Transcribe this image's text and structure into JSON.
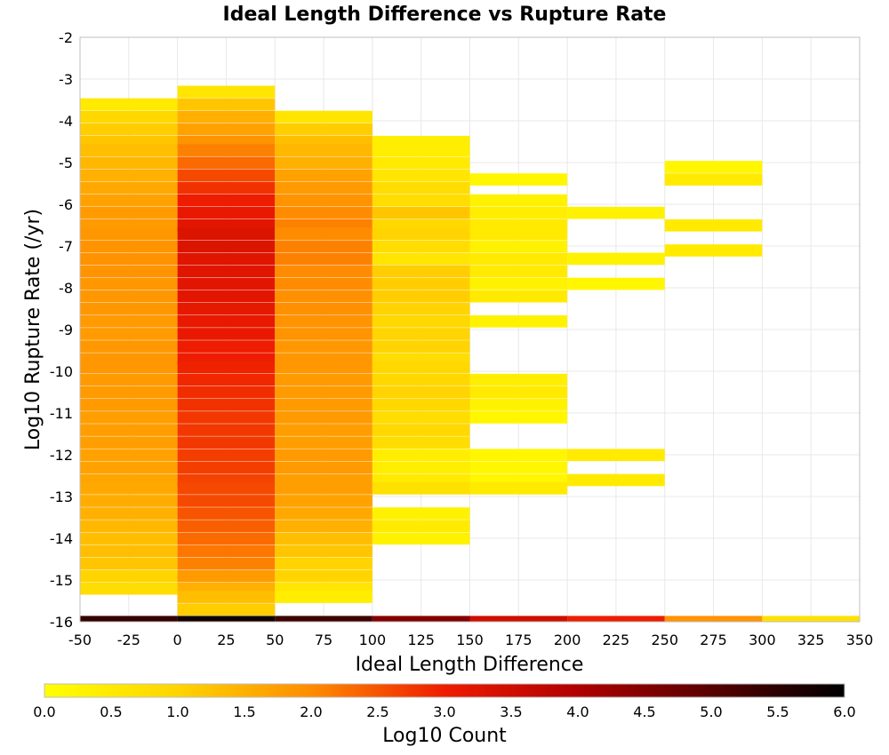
{
  "chart_data": {
    "type": "heatmap",
    "title": "Ideal Length Difference vs Rupture Rate",
    "xlabel": "Ideal Length Difference",
    "ylabel": "Log10 Rupture Rate (/yr)",
    "xlim": [
      -50,
      350
    ],
    "ylim": [
      -16,
      -2
    ],
    "x_ticks": [
      "-50",
      "-25",
      "0",
      "25",
      "50",
      "75",
      "100",
      "125",
      "150",
      "175",
      "200",
      "225",
      "250",
      "275",
      "300",
      "325",
      "350"
    ],
    "y_ticks": [
      "-2",
      "-3",
      "-4",
      "-5",
      "-6",
      "-7",
      "-8",
      "-9",
      "-10",
      "-11",
      "-12",
      "-13",
      "-14",
      "-15",
      "-16"
    ],
    "grid": true,
    "colorbar": {
      "label": "Log10 Count",
      "range": [
        0,
        6
      ],
      "ticks": [
        "0.0",
        "0.5",
        "1.0",
        "1.5",
        "2.0",
        "2.5",
        "3.0",
        "3.5",
        "4.0",
        "4.5",
        "5.0",
        "5.5",
        "6.0"
      ]
    },
    "x_bin_width": 50,
    "y_bin_height": 0.28,
    "columns": [
      {
        "x_start": -50,
        "cells": [
          [
            -3.6,
            0.5
          ],
          [
            -3.9,
            0.9
          ],
          [
            -4.2,
            1.1
          ],
          [
            -4.5,
            1.2
          ],
          [
            -4.7,
            1.3
          ],
          [
            -5.0,
            1.4
          ],
          [
            -5.3,
            1.5
          ],
          [
            -5.6,
            1.6
          ],
          [
            -5.9,
            1.7
          ],
          [
            -6.2,
            1.8
          ],
          [
            -6.5,
            1.8
          ],
          [
            -6.7,
            1.85
          ],
          [
            -7.0,
            1.9
          ],
          [
            -7.3,
            1.9
          ],
          [
            -7.6,
            1.9
          ],
          [
            -7.9,
            1.85
          ],
          [
            -8.2,
            1.85
          ],
          [
            -8.5,
            1.85
          ],
          [
            -8.8,
            1.8
          ],
          [
            -9.1,
            1.8
          ],
          [
            -9.4,
            1.85
          ],
          [
            -9.7,
            1.85
          ],
          [
            -9.9,
            1.85
          ],
          [
            -10.2,
            1.8
          ],
          [
            -10.5,
            1.8
          ],
          [
            -10.8,
            1.8
          ],
          [
            -11.1,
            1.75
          ],
          [
            -11.4,
            1.75
          ],
          [
            -11.7,
            1.75
          ],
          [
            -12.0,
            1.7
          ],
          [
            -12.3,
            1.7
          ],
          [
            -12.6,
            1.65
          ],
          [
            -12.8,
            1.6
          ],
          [
            -13.1,
            1.55
          ],
          [
            -13.4,
            1.5
          ],
          [
            -13.7,
            1.4
          ],
          [
            -14.0,
            1.3
          ],
          [
            -14.3,
            1.3
          ],
          [
            -14.6,
            1.2
          ],
          [
            -14.9,
            1.0
          ],
          [
            -15.2,
            0.8
          ]
        ]
      },
      {
        "x_start": 0,
        "cells": [
          [
            -3.3,
            0.6
          ],
          [
            -3.6,
            1.2
          ],
          [
            -3.9,
            1.5
          ],
          [
            -4.2,
            1.7
          ],
          [
            -4.5,
            1.9
          ],
          [
            -4.7,
            2.1
          ],
          [
            -5.0,
            2.3
          ],
          [
            -5.3,
            2.6
          ],
          [
            -5.6,
            2.8
          ],
          [
            -5.9,
            3.0
          ],
          [
            -6.2,
            3.1
          ],
          [
            -6.5,
            3.2
          ],
          [
            -6.7,
            3.3
          ],
          [
            -7.0,
            3.3
          ],
          [
            -7.3,
            3.25
          ],
          [
            -7.6,
            3.25
          ],
          [
            -7.9,
            3.2
          ],
          [
            -8.2,
            3.2
          ],
          [
            -8.5,
            3.15
          ],
          [
            -8.8,
            3.1
          ],
          [
            -9.1,
            3.1
          ],
          [
            -9.4,
            3.0
          ],
          [
            -9.7,
            3.0
          ],
          [
            -9.9,
            2.95
          ],
          [
            -10.2,
            2.9
          ],
          [
            -10.5,
            2.85
          ],
          [
            -10.8,
            2.8
          ],
          [
            -11.1,
            2.75
          ],
          [
            -11.4,
            2.75
          ],
          [
            -11.7,
            2.75
          ],
          [
            -12.0,
            2.7
          ],
          [
            -12.3,
            2.7
          ],
          [
            -12.6,
            2.65
          ],
          [
            -12.8,
            2.6
          ],
          [
            -13.1,
            2.6
          ],
          [
            -13.4,
            2.5
          ],
          [
            -13.7,
            2.4
          ],
          [
            -14.0,
            2.3
          ],
          [
            -14.3,
            2.2
          ],
          [
            -14.6,
            2.1
          ],
          [
            -14.9,
            1.8
          ],
          [
            -15.2,
            1.5
          ],
          [
            -15.4,
            1.3
          ],
          [
            -15.7,
            1.1
          ]
        ]
      },
      {
        "x_start": 50,
        "cells": [
          [
            -3.9,
            0.6
          ],
          [
            -4.2,
            1.1
          ],
          [
            -4.5,
            1.3
          ],
          [
            -4.7,
            1.4
          ],
          [
            -5.0,
            1.5
          ],
          [
            -5.3,
            1.7
          ],
          [
            -5.6,
            1.8
          ],
          [
            -5.9,
            1.9
          ],
          [
            -6.2,
            2.0
          ],
          [
            -6.5,
            2.1
          ],
          [
            -6.7,
            2.0
          ],
          [
            -7.0,
            2.1
          ],
          [
            -7.3,
            2.1
          ],
          [
            -7.6,
            2.0
          ],
          [
            -7.9,
            2.0
          ],
          [
            -8.2,
            1.95
          ],
          [
            -8.5,
            1.95
          ],
          [
            -8.8,
            1.9
          ],
          [
            -9.1,
            1.9
          ],
          [
            -9.4,
            1.85
          ],
          [
            -9.7,
            1.85
          ],
          [
            -9.9,
            1.85
          ],
          [
            -10.2,
            1.8
          ],
          [
            -10.5,
            1.8
          ],
          [
            -10.8,
            1.8
          ],
          [
            -11.1,
            1.8
          ],
          [
            -11.4,
            1.75
          ],
          [
            -11.7,
            1.75
          ],
          [
            -12.0,
            1.8
          ],
          [
            -12.3,
            1.8
          ],
          [
            -12.6,
            1.75
          ],
          [
            -12.8,
            1.75
          ],
          [
            -13.1,
            1.7
          ],
          [
            -13.4,
            1.6
          ],
          [
            -13.7,
            1.5
          ],
          [
            -14.0,
            1.3
          ],
          [
            -14.3,
            1.2
          ],
          [
            -14.6,
            1.0
          ],
          [
            -14.9,
            1.0
          ],
          [
            -15.2,
            0.6
          ],
          [
            -15.4,
            0.4
          ]
        ]
      },
      {
        "x_start": 100,
        "cells": [
          [
            -4.5,
            0.4
          ],
          [
            -4.7,
            0.4
          ],
          [
            -5.0,
            0.5
          ],
          [
            -5.3,
            0.6
          ],
          [
            -5.6,
            0.8
          ],
          [
            -5.9,
            0.8
          ],
          [
            -6.2,
            1.2
          ],
          [
            -6.5,
            0.9
          ],
          [
            -6.7,
            1.0
          ],
          [
            -7.0,
            0.8
          ],
          [
            -7.3,
            0.6
          ],
          [
            -7.6,
            1.1
          ],
          [
            -7.9,
            1.1
          ],
          [
            -8.2,
            1.1
          ],
          [
            -8.5,
            1.0
          ],
          [
            -8.8,
            0.9
          ],
          [
            -9.1,
            1.0
          ],
          [
            -9.4,
            1.0
          ],
          [
            -9.7,
            0.8
          ],
          [
            -9.9,
            0.9
          ],
          [
            -10.2,
            0.9
          ],
          [
            -10.5,
            1.0
          ],
          [
            -10.8,
            0.9
          ],
          [
            -11.1,
            0.8
          ],
          [
            -11.4,
            0.9
          ],
          [
            -11.7,
            0.8
          ],
          [
            -12.0,
            0.4
          ],
          [
            -12.3,
            0.4
          ],
          [
            -12.6,
            0.5
          ],
          [
            -12.8,
            0.7
          ],
          [
            -13.4,
            0.3
          ],
          [
            -13.7,
            0.5
          ],
          [
            -14.0,
            0.3
          ]
        ]
      },
      {
        "x_start": 150,
        "cells": [
          [
            -5.4,
            0.2
          ],
          [
            -5.9,
            0.3
          ],
          [
            -6.2,
            0.4
          ],
          [
            -6.5,
            0.5
          ],
          [
            -6.7,
            0.5
          ],
          [
            -7.0,
            0.3
          ],
          [
            -7.3,
            0.5
          ],
          [
            -7.6,
            0.5
          ],
          [
            -7.9,
            0.3
          ],
          [
            -8.2,
            0.5
          ],
          [
            -8.8,
            0.3
          ],
          [
            -10.2,
            0.4
          ],
          [
            -10.5,
            0.5
          ],
          [
            -10.8,
            0.3
          ],
          [
            -11.1,
            0.2
          ],
          [
            -12.0,
            0.2
          ],
          [
            -12.3,
            0.2
          ],
          [
            -12.6,
            0.2
          ],
          [
            -12.8,
            0.5
          ]
        ]
      },
      {
        "x_start": 200,
        "cells": [
          [
            -6.2,
            0.3
          ],
          [
            -7.3,
            0.3
          ],
          [
            -7.9,
            0.2
          ],
          [
            -12.0,
            0.5
          ],
          [
            -12.6,
            0.5
          ]
        ]
      },
      {
        "x_start": 250,
        "cells": [
          [
            -5.1,
            0.2
          ],
          [
            -5.4,
            0.5
          ],
          [
            -6.5,
            0.5
          ],
          [
            -7.1,
            0.5
          ]
        ]
      }
    ],
    "bottom_row": {
      "y": -16,
      "bins": [
        {
          "x_start": -50,
          "value": 5.4
        },
        {
          "x_start": 0,
          "value": 5.8
        },
        {
          "x_start": 50,
          "value": 5.3
        },
        {
          "x_start": 100,
          "value": 4.5
        },
        {
          "x_start": 150,
          "value": 3.5
        },
        {
          "x_start": 200,
          "value": 3.0
        },
        {
          "x_start": 250,
          "value": 1.9
        },
        {
          "x_start": 300,
          "value": 0.7
        }
      ]
    }
  }
}
